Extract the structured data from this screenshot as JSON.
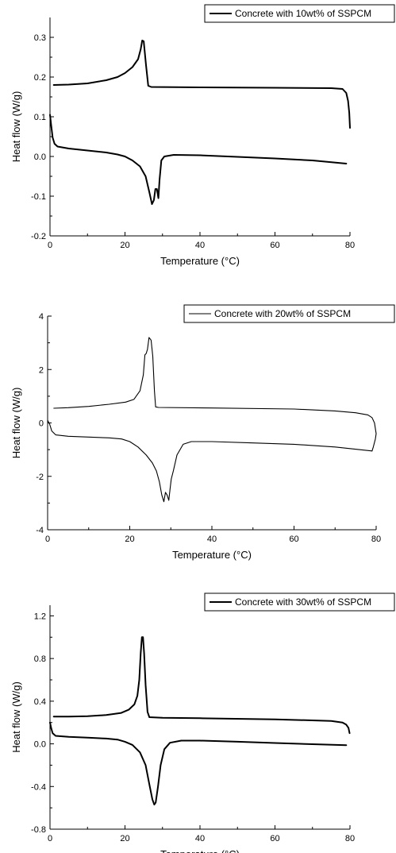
{
  "chart_data": [
    {
      "type": "line",
      "title": "",
      "xlabel": "Temperature (°C)",
      "ylabel": "Heat flow (W/g)",
      "xlim": [
        0,
        80
      ],
      "ylim": [
        -0.2,
        0.35
      ],
      "xticks": [
        0,
        20,
        40,
        60,
        80
      ],
      "yticks": [
        -0.2,
        -0.1,
        0.0,
        0.1,
        0.2,
        0.3
      ],
      "ytick_labels": [
        "-0.2",
        "-0.1",
        "0.0",
        "0.1",
        "0.2",
        "0.3"
      ],
      "grid": false,
      "legend_position": "top-right",
      "series": [
        {
          "name": "Concrete with 10wt% of SSPCM",
          "segments": [
            [
              [
                1,
                0.18
              ],
              [
                5,
                0.181
              ],
              [
                10,
                0.184
              ],
              [
                15,
                0.192
              ],
              [
                18,
                0.2
              ],
              [
                20,
                0.21
              ],
              [
                22,
                0.225
              ],
              [
                23.5,
                0.245
              ],
              [
                24.2,
                0.27
              ],
              [
                24.6,
                0.292
              ],
              [
                25,
                0.29
              ],
              [
                25.6,
                0.23
              ],
              [
                26.2,
                0.178
              ],
              [
                27,
                0.175
              ],
              [
                40,
                0.174
              ],
              [
                60,
                0.173
              ],
              [
                75,
                0.172
              ],
              [
                78,
                0.17
              ],
              [
                79,
                0.16
              ],
              [
                79.5,
                0.14
              ],
              [
                79.8,
                0.11
              ],
              [
                80,
                0.072
              ]
            ],
            [
              [
                0,
                0.105
              ],
              [
                0.3,
                0.08
              ],
              [
                0.7,
                0.048
              ],
              [
                1.2,
                0.032
              ],
              [
                2,
                0.025
              ],
              [
                5,
                0.02
              ],
              [
                10,
                0.015
              ],
              [
                15,
                0.01
              ],
              [
                18,
                0.005
              ],
              [
                20,
                0.0
              ],
              [
                22,
                -0.01
              ],
              [
                24,
                -0.025
              ],
              [
                25.5,
                -0.05
              ],
              [
                26.5,
                -0.09
              ],
              [
                27.2,
                -0.12
              ],
              [
                27.7,
                -0.11
              ],
              [
                28.1,
                -0.082
              ],
              [
                28.5,
                -0.082
              ],
              [
                28.9,
                -0.105
              ],
              [
                29.2,
                -0.06
              ],
              [
                29.7,
                -0.01
              ],
              [
                30.5,
                0.0
              ],
              [
                33,
                0.004
              ],
              [
                40,
                0.003
              ],
              [
                50,
                -0.001
              ],
              [
                60,
                -0.005
              ],
              [
                70,
                -0.01
              ],
              [
                79,
                -0.018
              ]
            ]
          ]
        }
      ]
    },
    {
      "type": "line",
      "title": "",
      "xlabel": "Temperature (°C)",
      "ylabel": "Heat flow (W/g)",
      "xlim": [
        0,
        80
      ],
      "ylim": [
        -4,
        4
      ],
      "xticks": [
        0,
        20,
        40,
        60,
        80
      ],
      "yticks": [
        -4,
        -2,
        0,
        2,
        4
      ],
      "ytick_labels": [
        "-4",
        "-2",
        "0",
        "2",
        "4"
      ],
      "grid": false,
      "legend_position": "top-right",
      "series": [
        {
          "name": "Concrete with 20wt% of SSPCM",
          "segments": [
            [
              [
                1.5,
                0.55
              ],
              [
                5,
                0.57
              ],
              [
                10,
                0.62
              ],
              [
                15,
                0.7
              ],
              [
                19,
                0.78
              ],
              [
                21,
                0.88
              ],
              [
                22.5,
                1.2
              ],
              [
                23.3,
                1.8
              ],
              [
                23.7,
                2.55
              ],
              [
                24,
                2.6
              ],
              [
                24.3,
                2.75
              ],
              [
                24.7,
                3.2
              ],
              [
                25.2,
                3.1
              ],
              [
                25.6,
                2.5
              ],
              [
                26,
                1.2
              ],
              [
                26.3,
                0.6
              ],
              [
                27,
                0.58
              ],
              [
                40,
                0.56
              ],
              [
                60,
                0.52
              ],
              [
                70,
                0.45
              ],
              [
                75,
                0.38
              ],
              [
                78,
                0.3
              ],
              [
                79,
                0.2
              ],
              [
                79.6,
                0.0
              ],
              [
                80,
                -0.4
              ],
              [
                79.8,
                -0.6
              ],
              [
                79.3,
                -0.9
              ],
              [
                79,
                -1.05
              ]
            ],
            [
              [
                0,
                0.1
              ],
              [
                0.5,
                -0.05
              ],
              [
                1,
                -0.3
              ],
              [
                2,
                -0.45
              ],
              [
                5,
                -0.5
              ],
              [
                10,
                -0.53
              ],
              [
                15,
                -0.56
              ],
              [
                18,
                -0.6
              ],
              [
                20,
                -0.7
              ],
              [
                22,
                -0.9
              ],
              [
                24,
                -1.2
              ],
              [
                25.5,
                -1.5
              ],
              [
                26.5,
                -1.8
              ],
              [
                27.2,
                -2.2
              ],
              [
                27.8,
                -2.7
              ],
              [
                28.3,
                -2.95
              ],
              [
                28.7,
                -2.6
              ],
              [
                29.1,
                -2.7
              ],
              [
                29.5,
                -2.9
              ],
              [
                29.8,
                -2.5
              ],
              [
                30.1,
                -2.1
              ],
              [
                30.6,
                -1.8
              ],
              [
                31.5,
                -1.2
              ],
              [
                33,
                -0.8
              ],
              [
                35,
                -0.7
              ],
              [
                40,
                -0.7
              ],
              [
                50,
                -0.75
              ],
              [
                60,
                -0.8
              ],
              [
                70,
                -0.9
              ],
              [
                79,
                -1.05
              ]
            ]
          ]
        }
      ]
    },
    {
      "type": "line",
      "title": "",
      "xlabel": "Temperature (°C)",
      "ylabel": "Heat flow (W/g)",
      "xlim": [
        0,
        80
      ],
      "ylim": [
        -0.8,
        1.3
      ],
      "xticks": [
        0,
        20,
        40,
        60,
        80
      ],
      "yticks": [
        -0.8,
        -0.4,
        0.0,
        0.4,
        0.8,
        1.2
      ],
      "ytick_labels": [
        "-0.8",
        "-0.4",
        "0.0",
        "0.4",
        "0.8",
        "1.2"
      ],
      "grid": false,
      "legend_position": "top-right",
      "series": [
        {
          "name": "Concrete with 30wt% of SSPCM",
          "segments": [
            [
              [
                1,
                0.255
              ],
              [
                5,
                0.256
              ],
              [
                10,
                0.26
              ],
              [
                15,
                0.27
              ],
              [
                19,
                0.29
              ],
              [
                21,
                0.32
              ],
              [
                22.5,
                0.37
              ],
              [
                23.3,
                0.45
              ],
              [
                23.8,
                0.6
              ],
              [
                24.2,
                0.85
              ],
              [
                24.5,
                1.0
              ],
              [
                24.8,
                1.0
              ],
              [
                25.1,
                0.85
              ],
              [
                25.5,
                0.55
              ],
              [
                26,
                0.3
              ],
              [
                26.5,
                0.25
              ],
              [
                30,
                0.245
              ],
              [
                40,
                0.24
              ],
              [
                60,
                0.23
              ],
              [
                75,
                0.215
              ],
              [
                78,
                0.2
              ],
              [
                79,
                0.18
              ],
              [
                79.6,
                0.15
              ],
              [
                79.9,
                0.1
              ]
            ],
            [
              [
                0,
                0.2
              ],
              [
                0.3,
                0.15
              ],
              [
                0.7,
                0.1
              ],
              [
                1.5,
                0.075
              ],
              [
                5,
                0.065
              ],
              [
                10,
                0.058
              ],
              [
                15,
                0.05
              ],
              [
                18,
                0.04
              ],
              [
                20,
                0.02
              ],
              [
                22,
                -0.01
              ],
              [
                24,
                -0.08
              ],
              [
                25.5,
                -0.2
              ],
              [
                26.5,
                -0.38
              ],
              [
                27.3,
                -0.52
              ],
              [
                27.8,
                -0.57
              ],
              [
                28.2,
                -0.55
              ],
              [
                28.8,
                -0.4
              ],
              [
                29.5,
                -0.2
              ],
              [
                30.5,
                -0.05
              ],
              [
                32,
                0.01
              ],
              [
                35,
                0.03
              ],
              [
                40,
                0.03
              ],
              [
                50,
                0.02
              ],
              [
                60,
                0.008
              ],
              [
                70,
                -0.003
              ],
              [
                79,
                -0.012
              ]
            ]
          ]
        }
      ]
    }
  ]
}
